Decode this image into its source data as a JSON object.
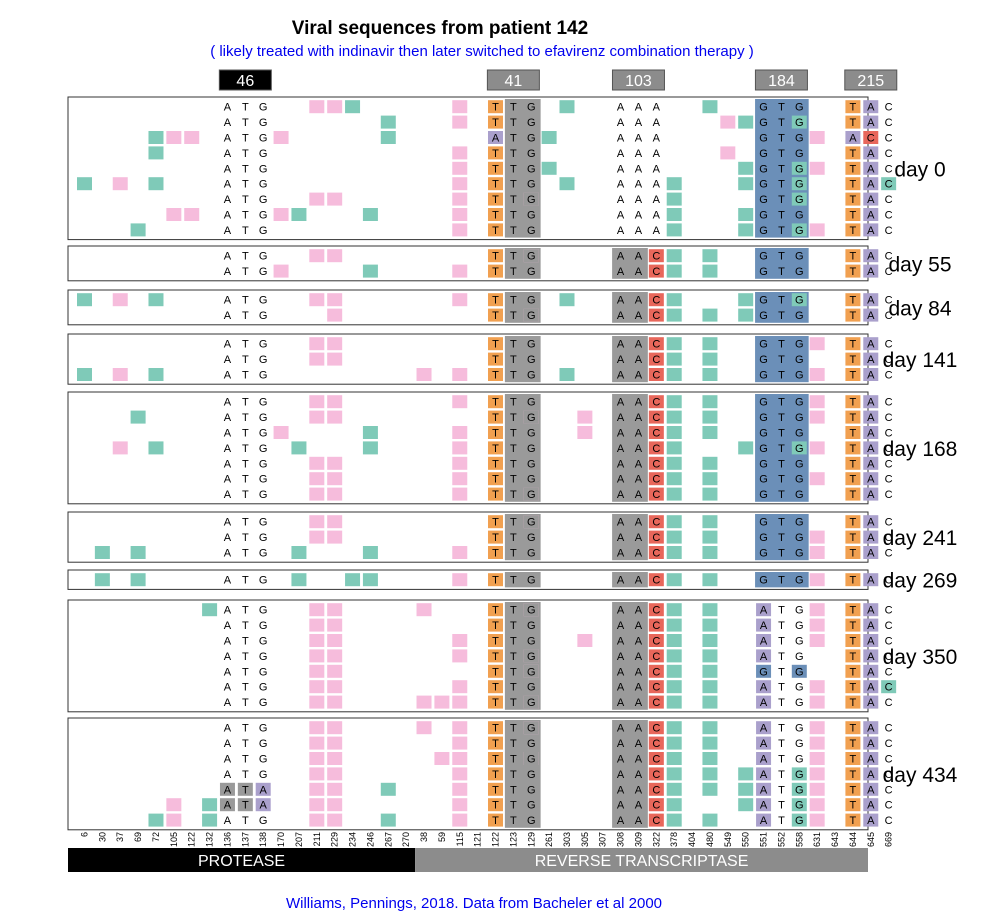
{
  "title": "Viral sequences from patient 142",
  "subtitle": "( likely treated with indinavir then later switched to efavirenz combination therapy )",
  "credit": "Williams, Pennings, 2018. Data from Bacheler et al 2000",
  "regions": [
    {
      "label": "PROTEASE",
      "color": "#000000"
    },
    {
      "label": "REVERSE TRANSCRIPTASE",
      "color": "#8c8c8c"
    }
  ],
  "colors": {
    "synonymous": "#f6bcdc",
    "nonsynonymous": "#7fcab8",
    "A": "#aaa0cc",
    "C": "#e8675b",
    "G": "#6b8fb8",
    "T": "#f1a050",
    "gray": "#9a9a9a",
    "pos46": "#000000",
    "posOther": "#8c8c8c"
  },
  "sites": [
    "6",
    "30",
    "37",
    "69",
    "72",
    "105",
    "122",
    "132",
    "136",
    "137",
    "138",
    "170",
    "207",
    "211",
    "229",
    "234",
    "246",
    "267",
    "270",
    "38",
    "59",
    "115",
    "121",
    "122",
    "123",
    "129",
    "261",
    "303",
    "305",
    "307",
    "308",
    "309",
    "322",
    "378",
    "404",
    "480",
    "549",
    "550",
    "551",
    "552",
    "558",
    "631",
    "643",
    "644",
    "645",
    "669"
  ],
  "key_positions": [
    {
      "label": "46",
      "codon": 8
    },
    {
      "label": "41",
      "codon": 23
    },
    {
      "label": "103",
      "codon": 30
    },
    {
      "label": "184",
      "codon": 38
    },
    {
      "label": "215",
      "codon": 43
    }
  ],
  "base_sequences": [
    "ATG",
    "TTG",
    "AAA",
    "GTG",
    "TAC"
  ],
  "time_points": [
    {
      "label": "day 0",
      "seqs": [
        {
          "c1": "ATG",
          "c2": "TTG",
          "c3": "AAA",
          "c4": "GTG",
          "c5": "TAC",
          "syn": [
            13,
            14,
            21
          ],
          "non": [
            15,
            27,
            35
          ]
        },
        {
          "c1": "ATG",
          "c2": "TTG",
          "c3": "AAA",
          "c4": "GTG",
          "c5": "TAC",
          "syn": [
            21,
            36
          ],
          "non": [
            17,
            37,
            40
          ]
        },
        {
          "c1": "ATG",
          "c2": "ATG",
          "c3": "AAA",
          "c4": "GTG",
          "c5": "ACC",
          "syn": [
            5,
            6,
            11,
            41
          ],
          "non": [
            4,
            17,
            26
          ]
        },
        {
          "c1": "ATG",
          "c2": "TTG",
          "c3": "AAA",
          "c4": "GTG",
          "c5": "TAC",
          "syn": [
            21,
            36
          ],
          "non": [
            4
          ]
        },
        {
          "c1": "ATG",
          "c2": "TTG",
          "c3": "AAA",
          "c4": "GTG",
          "c5": "TAC",
          "syn": [
            21,
            41
          ],
          "non": [
            26,
            37,
            40
          ]
        },
        {
          "c1": "ATG",
          "c2": "TTG",
          "c3": "AAA",
          "c4": "GTG",
          "c5": "TAC",
          "syn": [
            2,
            21
          ],
          "non": [
            0,
            4,
            27,
            33,
            37,
            40,
            45
          ]
        },
        {
          "c1": "ATG",
          "c2": "TTG",
          "c3": "AAA",
          "c4": "GTG",
          "c5": "TAC",
          "syn": [
            13,
            14,
            21,
            25
          ],
          "non": [
            33,
            40
          ]
        },
        {
          "c1": "ATG",
          "c2": "TTG",
          "c3": "AAA",
          "c4": "GTG",
          "c5": "TAC",
          "syn": [
            5,
            6,
            11,
            21
          ],
          "non": [
            12,
            16,
            33,
            37
          ]
        },
        {
          "c1": "ATG",
          "c2": "TTG",
          "c3": "AAA",
          "c4": "GTG",
          "c5": "TAC",
          "syn": [
            21,
            41
          ],
          "non": [
            3,
            33,
            37,
            40
          ]
        }
      ]
    },
    {
      "label": "day 55",
      "seqs": [
        {
          "c1": "ATG",
          "c2": "TTG",
          "c3": "AAC",
          "c4": "GTG",
          "c5": "TAC",
          "syn": [
            13,
            14,
            25
          ],
          "non": [
            33,
            35
          ]
        },
        {
          "c1": "ATG",
          "c2": "TTG",
          "c3": "AAC",
          "c4": "GTG",
          "c5": "TAC",
          "syn": [
            11,
            21
          ],
          "non": [
            16,
            33,
            35
          ]
        }
      ]
    },
    {
      "label": "day 84",
      "seqs": [
        {
          "c1": "ATG",
          "c2": "TTG",
          "c3": "AAC",
          "c4": "GTG",
          "c5": "TAC",
          "syn": [
            2,
            13,
            14,
            21
          ],
          "non": [
            0,
            4,
            27,
            33,
            37,
            40
          ]
        },
        {
          "c1": "ATG",
          "c2": "TTG",
          "c3": "AAC",
          "c4": "GTG",
          "c5": "TAC",
          "syn": [
            14,
            25
          ],
          "non": [
            33,
            35,
            37
          ]
        }
      ]
    },
    {
      "label": "day 141",
      "seqs": [
        {
          "c1": "ATG",
          "c2": "TTG",
          "c3": "AAC",
          "c4": "GTG",
          "c5": "TAC",
          "syn": [
            13,
            14,
            41
          ],
          "non": [
            33,
            35
          ]
        },
        {
          "c1": "ATG",
          "c2": "TTG",
          "c3": "AAC",
          "c4": "GTG",
          "c5": "TAC",
          "syn": [
            13,
            14
          ],
          "non": [
            33,
            35
          ]
        },
        {
          "c1": "ATG",
          "c2": "TTG",
          "c3": "AAC",
          "c4": "GTG",
          "c5": "TAC",
          "syn": [
            2,
            19,
            21,
            41
          ],
          "non": [
            0,
            4,
            27,
            33,
            35
          ]
        }
      ]
    },
    {
      "label": "day 168",
      "seqs": [
        {
          "c1": "ATG",
          "c2": "TTG",
          "c3": "AAC",
          "c4": "GTG",
          "c5": "TAC",
          "syn": [
            13,
            14,
            21,
            41
          ],
          "non": [
            33,
            35
          ]
        },
        {
          "c1": "ATG",
          "c2": "TTG",
          "c3": "AAC",
          "c4": "GTG",
          "c5": "TAC",
          "syn": [
            13,
            14,
            25,
            28,
            41
          ],
          "non": [
            3,
            33,
            35
          ]
        },
        {
          "c1": "ATG",
          "c2": "TTG",
          "c3": "AAC",
          "c4": "GTG",
          "c5": "TAC",
          "syn": [
            11,
            21,
            28
          ],
          "non": [
            16,
            33,
            35
          ]
        },
        {
          "c1": "ATG",
          "c2": "TTG",
          "c3": "AAC",
          "c4": "GTG",
          "c5": "TAC",
          "syn": [
            2,
            21,
            41
          ],
          "non": [
            4,
            12,
            16,
            33,
            37,
            40
          ]
        },
        {
          "c1": "ATG",
          "c2": "TTG",
          "c3": "AAC",
          "c4": "GTG",
          "c5": "TAC",
          "syn": [
            13,
            14,
            21
          ],
          "non": [
            33,
            35
          ]
        },
        {
          "c1": "ATG",
          "c2": "TTG",
          "c3": "AAC",
          "c4": "GTG",
          "c5": "TAC",
          "syn": [
            13,
            14,
            21,
            41
          ],
          "non": [
            33,
            35
          ]
        },
        {
          "c1": "ATG",
          "c2": "TTG",
          "c3": "AAC",
          "c4": "GTG",
          "c5": "TAC",
          "syn": [
            13,
            14,
            21,
            25
          ],
          "non": [
            33,
            35
          ]
        }
      ]
    },
    {
      "label": "day 241",
      "seqs": [
        {
          "c1": "ATG",
          "c2": "TTG",
          "c3": "AAC",
          "c4": "GTG",
          "c5": "TAC",
          "syn": [
            13,
            14,
            25
          ],
          "non": [
            33,
            35
          ]
        },
        {
          "c1": "ATG",
          "c2": "TTG",
          "c3": "AAC",
          "c4": "GTG",
          "c5": "TAC",
          "syn": [
            13,
            14,
            41
          ],
          "non": [
            33,
            35
          ]
        },
        {
          "c1": "ATG",
          "c2": "TTG",
          "c3": "AAC",
          "c4": "GTG",
          "c5": "TAC",
          "syn": [
            21,
            41
          ],
          "non": [
            1,
            3,
            12,
            16,
            33,
            35
          ]
        }
      ]
    },
    {
      "label": "day 269",
      "seqs": [
        {
          "c1": "ATG",
          "c2": "TTG",
          "c3": "AAC",
          "c4": "GTG",
          "c5": "TAC",
          "syn": [
            21,
            41
          ],
          "non": [
            1,
            3,
            12,
            15,
            16,
            33,
            35
          ]
        }
      ]
    },
    {
      "label": "day 350",
      "seqs": [
        {
          "c1": "ATG",
          "c2": "TTG",
          "c3": "AAC",
          "c4": "ATG",
          "c5": "TAC",
          "syn": [
            13,
            14,
            19,
            25,
            41
          ],
          "non": [
            7,
            33,
            35
          ]
        },
        {
          "c1": "ATG",
          "c2": "TTG",
          "c3": "AAC",
          "c4": "ATG",
          "c5": "TAC",
          "syn": [
            13,
            14,
            41
          ],
          "non": [
            33,
            35
          ]
        },
        {
          "c1": "ATG",
          "c2": "TTG",
          "c3": "AAC",
          "c4": "ATG",
          "c5": "TAC",
          "syn": [
            13,
            14,
            21,
            28,
            41
          ],
          "non": [
            33,
            35
          ]
        },
        {
          "c1": "ATG",
          "c2": "TTG",
          "c3": "AAC",
          "c4": "ATG",
          "c5": "TAC",
          "syn": [
            13,
            14,
            21,
            25
          ],
          "non": [
            33,
            35
          ]
        },
        {
          "c1": "ATG",
          "c2": "TTG",
          "c3": "AAC",
          "c4": "GTG",
          "c5": "TAC",
          "syn": [
            13,
            14,
            25
          ],
          "non": [
            33,
            35
          ]
        },
        {
          "c1": "ATG",
          "c2": "TTG",
          "c3": "AAC",
          "c4": "ATG",
          "c5": "TAC",
          "syn": [
            13,
            14,
            21,
            41
          ],
          "non": [
            33,
            35,
            45
          ]
        },
        {
          "c1": "ATG",
          "c2": "TTG",
          "c3": "AAC",
          "c4": "ATG",
          "c5": "TAC",
          "syn": [
            13,
            14,
            19,
            20,
            21,
            25,
            41
          ],
          "non": [
            33,
            35
          ]
        }
      ]
    },
    {
      "label": "day 434",
      "seqs": [
        {
          "c1": "ATG",
          "c2": "TTG",
          "c3": "AAC",
          "c4": "ATG",
          "c5": "TAC",
          "syn": [
            13,
            14,
            19,
            21,
            25,
            41
          ],
          "non": [
            33,
            35
          ]
        },
        {
          "c1": "ATG",
          "c2": "TTG",
          "c3": "AAC",
          "c4": "ATG",
          "c5": "TAC",
          "syn": [
            13,
            14,
            21,
            32,
            41
          ],
          "non": [
            33,
            35
          ]
        },
        {
          "c1": "ATG",
          "c2": "TTG",
          "c3": "AAC",
          "c4": "ATG",
          "c5": "TAC",
          "syn": [
            13,
            14,
            20,
            21,
            25,
            41
          ],
          "non": [
            33,
            35
          ]
        },
        {
          "c1": "ATG",
          "c2": "TTG",
          "c3": "AAC",
          "c4": "ATG",
          "c5": "TAC",
          "syn": [
            13,
            14,
            21,
            41
          ],
          "non": [
            33,
            35,
            37,
            40
          ]
        },
        {
          "c1": "ATA",
          "c2": "TTG",
          "c3": "AAC",
          "c4": "ATG",
          "c5": "TAC",
          "syn": [
            13,
            14,
            21,
            41
          ],
          "non": [
            17,
            33,
            35,
            37,
            40
          ]
        },
        {
          "c1": "ATA",
          "c2": "TTG",
          "c3": "AAC",
          "c4": "ATG",
          "c5": "TAC",
          "syn": [
            5,
            13,
            14,
            21,
            32,
            41
          ],
          "non": [
            7,
            33,
            37,
            40
          ]
        },
        {
          "c1": "ATG",
          "c2": "TTG",
          "c3": "AAC",
          "c4": "ATG",
          "c5": "TAC",
          "syn": [
            5,
            13,
            14,
            21,
            41
          ],
          "non": [
            4,
            7,
            17,
            33,
            35,
            40
          ]
        }
      ]
    }
  ]
}
